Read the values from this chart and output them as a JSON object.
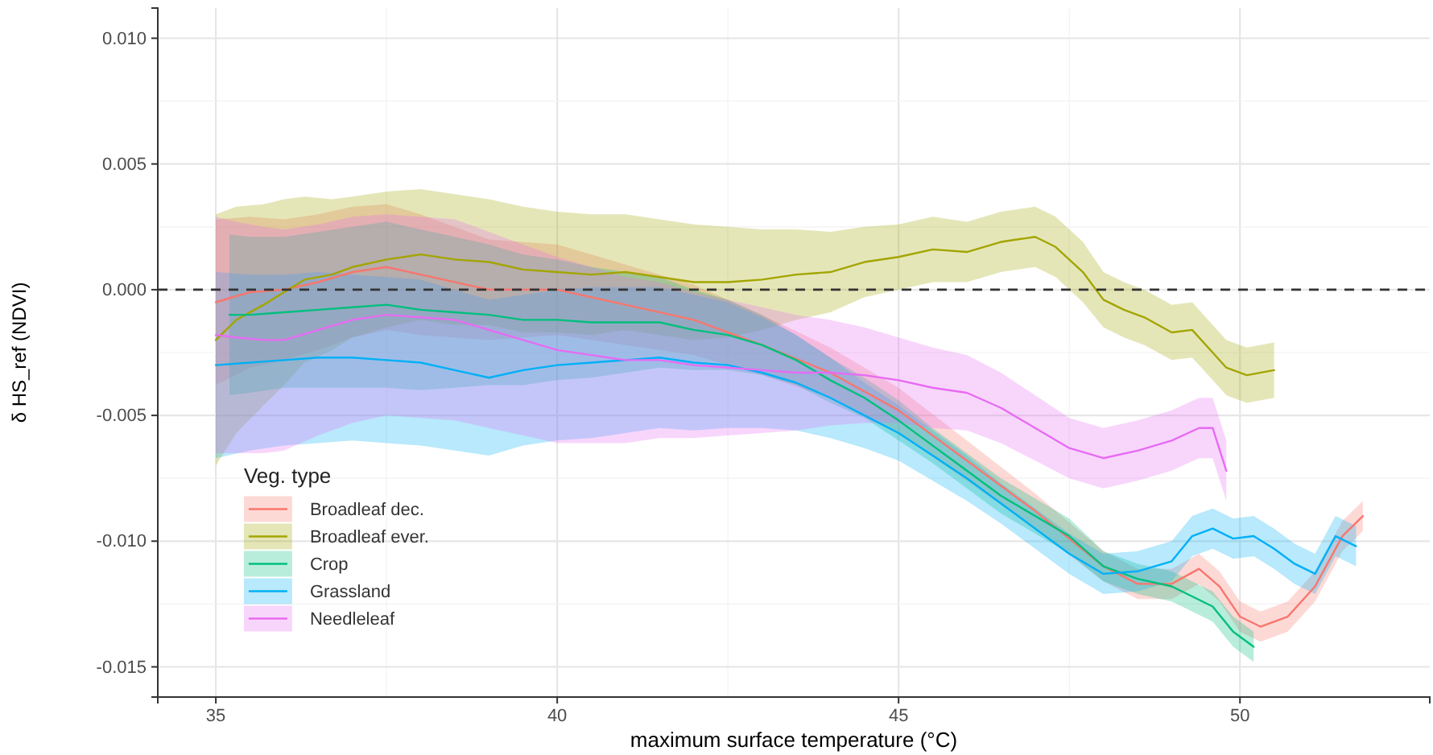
{
  "chart_data": {
    "type": "line",
    "xlabel": "maximum surface temperature (°C)",
    "ylabel": "δ HS_ref (NDVI)",
    "legend_title": "Veg. type",
    "xlim": [
      34.15,
      52.78
    ],
    "ylim": [
      -0.0162,
      0.0112
    ],
    "xticks": [
      35,
      40,
      45,
      50
    ],
    "yticks": [
      {
        "value": -0.015,
        "label": "-0.015"
      },
      {
        "value": -0.01,
        "label": "-0.010"
      },
      {
        "value": -0.005,
        "label": "-0.005"
      },
      {
        "value": 0,
        "label": "0.000"
      },
      {
        "value": 0.005,
        "label": "0.005"
      },
      {
        "value": 0.01,
        "label": "0.010"
      }
    ],
    "grid": true,
    "legend": "bottom left",
    "line_style": "solid",
    "ref_lines": [
      {
        "axis": "y",
        "value": 0,
        "line_style": "dashed",
        "color": "#333333"
      }
    ],
    "series": [
      {
        "name": "Broadleaf dec.",
        "color": "#F8766D",
        "x": [
          35,
          35.5,
          36,
          36.5,
          37,
          37.5,
          38,
          39,
          40,
          41,
          42,
          43,
          44,
          45,
          46,
          47,
          48,
          48.5,
          49,
          49.4,
          49.7,
          50,
          50.3,
          50.7,
          51.1,
          51.5,
          51.8
        ],
        "values": [
          -0.0005,
          -0.0001,
          0,
          0.0003,
          0.0007,
          0.0009,
          0.0006,
          0,
          0,
          -0.0006,
          -0.0012,
          -0.0022,
          -0.0033,
          -0.0048,
          -0.0068,
          -0.0088,
          -0.011,
          -0.0117,
          -0.0117,
          -0.0111,
          -0.0118,
          -0.013,
          -0.0134,
          -0.013,
          -0.0118,
          -0.0098,
          -0.009
        ],
        "upper": [
          0.0028,
          0.0029,
          0.0028,
          0.003,
          0.0033,
          0.0034,
          0.003,
          0.002,
          0.0018,
          0.001,
          0.0002,
          -0.001,
          -0.0023,
          -0.0039,
          -0.006,
          -0.0081,
          -0.0104,
          -0.0111,
          -0.0111,
          -0.0105,
          -0.0112,
          -0.0124,
          -0.0128,
          -0.0124,
          -0.0112,
          -0.0092,
          -0.0084
        ],
        "lower": [
          -0.0038,
          -0.0031,
          -0.0028,
          -0.0024,
          -0.0019,
          -0.0016,
          -0.0018,
          -0.002,
          -0.0018,
          -0.0022,
          -0.0026,
          -0.0034,
          -0.0043,
          -0.0057,
          -0.0076,
          -0.0095,
          -0.0116,
          -0.0123,
          -0.0123,
          -0.0117,
          -0.0124,
          -0.0136,
          -0.014,
          -0.0136,
          -0.0124,
          -0.0104,
          -0.0096
        ]
      },
      {
        "name": "Broadleaf ever.",
        "color": "#A3A500",
        "x": [
          35,
          35.3,
          35.7,
          36,
          36.3,
          36.7,
          37,
          37.5,
          38,
          38.5,
          39,
          39.5,
          40,
          40.5,
          41,
          41.5,
          42,
          42.5,
          43,
          43.5,
          44,
          44.5,
          45,
          45.5,
          46,
          46.5,
          47,
          47.3,
          47.7,
          48,
          48.3,
          48.6,
          49,
          49.3,
          49.6,
          49.8,
          50.1,
          50.5
        ],
        "values": [
          -0.002,
          -0.0012,
          -0.0006,
          -0.0001,
          0.0004,
          0.0006,
          0.0009,
          0.0012,
          0.0014,
          0.0012,
          0.0011,
          0.0008,
          0.0007,
          0.0006,
          0.0007,
          0.0005,
          0.0003,
          0.0003,
          0.0004,
          0.0006,
          0.0007,
          0.0011,
          0.0013,
          0.0016,
          0.0015,
          0.0019,
          0.0021,
          0.0017,
          0.0007,
          -0.0004,
          -0.0008,
          -0.0011,
          -0.0017,
          -0.0016,
          -0.0025,
          -0.0031,
          -0.0034,
          -0.0032
        ],
        "upper": [
          0.003,
          0.0033,
          0.0034,
          0.0036,
          0.0037,
          0.0036,
          0.0037,
          0.0039,
          0.004,
          0.0038,
          0.0036,
          0.0033,
          0.0031,
          0.003,
          0.003,
          0.0028,
          0.0026,
          0.0025,
          0.0024,
          0.0024,
          0.0023,
          0.0025,
          0.0026,
          0.0029,
          0.0027,
          0.0031,
          0.0033,
          0.0029,
          0.0019,
          0.0007,
          0.0003,
          0,
          -0.0006,
          -0.0005,
          -0.0014,
          -0.002,
          -0.0023,
          -0.0021
        ],
        "lower": [
          -0.007,
          -0.0057,
          -0.0046,
          -0.0038,
          -0.0029,
          -0.0024,
          -0.0019,
          -0.0015,
          -0.0012,
          -0.0014,
          -0.0014,
          -0.0017,
          -0.0017,
          -0.0018,
          -0.0016,
          -0.0018,
          -0.002,
          -0.0019,
          -0.0016,
          -0.0012,
          -0.0009,
          -0.0003,
          0,
          0.0003,
          0.0003,
          0.0007,
          0.0009,
          0.0005,
          -0.0005,
          -0.0015,
          -0.0019,
          -0.0022,
          -0.0028,
          -0.0027,
          -0.0036,
          -0.0042,
          -0.0045,
          -0.0043
        ]
      },
      {
        "name": "Crop",
        "color": "#00BF7D",
        "x": [
          35.2,
          35.5,
          36,
          36.5,
          37,
          37.5,
          38,
          38.5,
          39,
          39.5,
          40,
          40.5,
          41,
          41.5,
          42,
          42.5,
          43,
          43.5,
          44,
          44.5,
          45,
          45.5,
          46,
          46.5,
          47,
          47.5,
          48,
          48.5,
          49,
          49.3,
          49.6,
          49.9,
          50.2
        ],
        "values": [
          -0.001,
          -0.001,
          -0.0009,
          -0.0008,
          -0.0007,
          -0.0006,
          -0.0008,
          -0.0009,
          -0.001,
          -0.0012,
          -0.0012,
          -0.0013,
          -0.0013,
          -0.0013,
          -0.0016,
          -0.0018,
          -0.0022,
          -0.0028,
          -0.0036,
          -0.0043,
          -0.0052,
          -0.0062,
          -0.0072,
          -0.0082,
          -0.009,
          -0.0098,
          -0.011,
          -0.0115,
          -0.0118,
          -0.0122,
          -0.0126,
          -0.0136,
          -0.0142
        ],
        "upper": [
          0.0022,
          0.0021,
          0.0021,
          0.0023,
          0.0025,
          0.0027,
          0.0024,
          0.0021,
          0.0018,
          0.0014,
          0.0012,
          0.0009,
          0.0007,
          0.0005,
          0,
          -0.0004,
          -0.001,
          -0.0018,
          -0.0027,
          -0.0035,
          -0.0044,
          -0.0055,
          -0.0065,
          -0.0075,
          -0.0083,
          -0.0091,
          -0.0104,
          -0.0109,
          -0.0112,
          -0.0116,
          -0.012,
          -0.013,
          -0.0136
        ],
        "lower": [
          -0.0042,
          -0.0041,
          -0.0039,
          -0.0039,
          -0.0039,
          -0.0039,
          -0.004,
          -0.0039,
          -0.0038,
          -0.0038,
          -0.0036,
          -0.0035,
          -0.0033,
          -0.0031,
          -0.0032,
          -0.0032,
          -0.0034,
          -0.0038,
          -0.0045,
          -0.0051,
          -0.006,
          -0.0069,
          -0.0079,
          -0.0089,
          -0.0097,
          -0.0105,
          -0.0116,
          -0.0121,
          -0.0124,
          -0.0128,
          -0.0132,
          -0.0142,
          -0.0148
        ]
      },
      {
        "name": "Grassland",
        "color": "#00B0F6",
        "x": [
          35,
          35.5,
          36,
          36.5,
          37,
          37.5,
          38,
          38.5,
          39,
          39.5,
          40,
          40.5,
          41,
          41.5,
          42,
          42.5,
          43,
          43.5,
          44,
          44.5,
          45,
          45.5,
          46,
          46.5,
          47,
          47.5,
          48,
          48.5,
          49,
          49.3,
          49.6,
          49.9,
          50.2,
          50.5,
          50.8,
          51.1,
          51.4,
          51.7
        ],
        "values": [
          -0.003,
          -0.0029,
          -0.0028,
          -0.0027,
          -0.0027,
          -0.0028,
          -0.0029,
          -0.0032,
          -0.0035,
          -0.0032,
          -0.003,
          -0.0029,
          -0.0028,
          -0.0027,
          -0.0029,
          -0.003,
          -0.0033,
          -0.0037,
          -0.0043,
          -0.005,
          -0.0057,
          -0.0066,
          -0.0075,
          -0.0085,
          -0.0095,
          -0.0105,
          -0.0113,
          -0.0112,
          -0.0108,
          -0.0098,
          -0.0095,
          -0.0099,
          -0.0098,
          -0.0103,
          -0.0109,
          -0.0113,
          -0.0098,
          -0.0102
        ],
        "upper": [
          0.0007,
          0.0006,
          0.0006,
          0.0007,
          0.0006,
          0.0005,
          0.0004,
          0,
          -0.0004,
          -0.0002,
          0,
          0.0001,
          0.0001,
          0.0001,
          -0.0002,
          -0.0005,
          -0.0011,
          -0.0018,
          -0.0027,
          -0.0037,
          -0.0046,
          -0.0056,
          -0.0066,
          -0.0077,
          -0.0087,
          -0.0097,
          -0.0105,
          -0.0104,
          -0.01,
          -0.009,
          -0.0087,
          -0.0091,
          -0.009,
          -0.0095,
          -0.0101,
          -0.0105,
          -0.009,
          -0.0094
        ],
        "lower": [
          -0.0067,
          -0.0064,
          -0.0062,
          -0.0061,
          -0.006,
          -0.0061,
          -0.0062,
          -0.0064,
          -0.0066,
          -0.0062,
          -0.006,
          -0.0059,
          -0.0057,
          -0.0055,
          -0.0056,
          -0.0055,
          -0.0055,
          -0.0056,
          -0.0059,
          -0.0063,
          -0.0068,
          -0.0076,
          -0.0084,
          -0.0093,
          -0.0103,
          -0.0113,
          -0.0121,
          -0.012,
          -0.0116,
          -0.0106,
          -0.0103,
          -0.0107,
          -0.0106,
          -0.0111,
          -0.0117,
          -0.0121,
          -0.0106,
          -0.011
        ]
      },
      {
        "name": "Needleleaf",
        "color": "#E76BF3",
        "x": [
          35,
          35.3,
          35.7,
          36,
          36.5,
          37,
          37.5,
          38,
          38.5,
          39,
          39.5,
          40,
          40.5,
          41,
          41.5,
          42,
          42.5,
          43,
          43.5,
          44,
          44.5,
          45,
          45.5,
          46,
          46.5,
          47,
          47.5,
          48,
          48.5,
          49,
          49.4,
          49.6,
          49.8
        ],
        "values": [
          -0.0018,
          -0.0019,
          -0.002,
          -0.002,
          -0.0016,
          -0.0012,
          -0.001,
          -0.0011,
          -0.0012,
          -0.0016,
          -0.002,
          -0.0024,
          -0.0026,
          -0.0028,
          -0.0028,
          -0.003,
          -0.0031,
          -0.0032,
          -0.0033,
          -0.0033,
          -0.0034,
          -0.0036,
          -0.0039,
          -0.0041,
          -0.0047,
          -0.0055,
          -0.0063,
          -0.0067,
          -0.0064,
          -0.006,
          -0.0055,
          -0.0055,
          -0.0072
        ],
        "upper": [
          0.0029,
          0.0027,
          0.0025,
          0.0024,
          0.0026,
          0.0029,
          0.003,
          0.0029,
          0.0028,
          0.0023,
          0.0018,
          0.0013,
          0.0009,
          0.0005,
          0.0003,
          -0.0001,
          -0.0004,
          -0.0007,
          -0.001,
          -0.0012,
          -0.0015,
          -0.0019,
          -0.0023,
          -0.0026,
          -0.0033,
          -0.0042,
          -0.0051,
          -0.0055,
          -0.0052,
          -0.0048,
          -0.0043,
          -0.0043,
          -0.006
        ],
        "lower": [
          -0.0065,
          -0.0065,
          -0.0065,
          -0.0064,
          -0.0058,
          -0.0053,
          -0.005,
          -0.0051,
          -0.0052,
          -0.0055,
          -0.0058,
          -0.0061,
          -0.0061,
          -0.0061,
          -0.0059,
          -0.0059,
          -0.0058,
          -0.0057,
          -0.0056,
          -0.0054,
          -0.0053,
          -0.0053,
          -0.0055,
          -0.0056,
          -0.0061,
          -0.0068,
          -0.0075,
          -0.0079,
          -0.0076,
          -0.0072,
          -0.0067,
          -0.0067,
          -0.0084
        ]
      }
    ]
  }
}
